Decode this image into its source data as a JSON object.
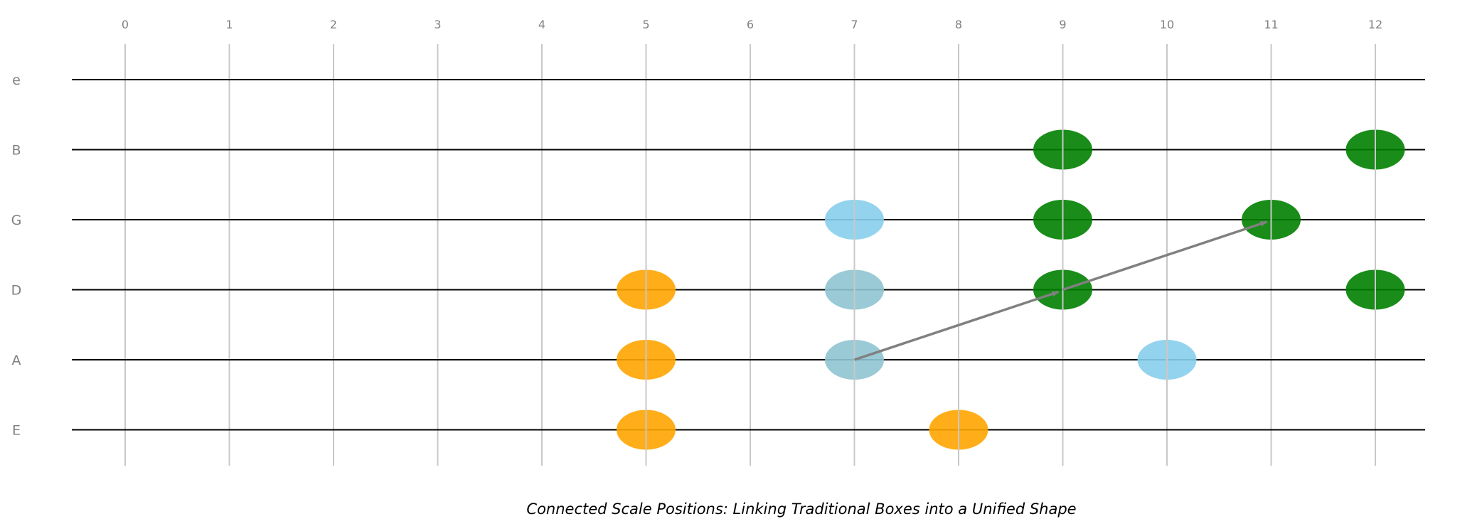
{
  "diagram": {
    "caption": "Connected Scale Positions: Linking Traditional Boxes into a Unified Shape",
    "frets": [
      0,
      1,
      2,
      3,
      4,
      5,
      6,
      7,
      8,
      9,
      10,
      11,
      12
    ],
    "strings": [
      "e",
      "B",
      "G",
      "D",
      "A",
      "E"
    ],
    "colors": {
      "orange": "#FFA500",
      "light_blue": "#87CEEB",
      "grayish_blue": "#8FC4D0",
      "green": "#008000",
      "arrow": "#808080",
      "string_line": "#000000",
      "fret_line": "#C8C8C8"
    },
    "notes": [
      {
        "string": "E",
        "fret": 5,
        "color": "orange"
      },
      {
        "string": "E",
        "fret": 8,
        "color": "orange"
      },
      {
        "string": "A",
        "fret": 5,
        "color": "orange"
      },
      {
        "string": "D",
        "fret": 5,
        "color": "orange"
      },
      {
        "string": "A",
        "fret": 7,
        "color": "grayish_blue"
      },
      {
        "string": "D",
        "fret": 7,
        "color": "grayish_blue"
      },
      {
        "string": "G",
        "fret": 7,
        "color": "light_blue"
      },
      {
        "string": "A",
        "fret": 10,
        "color": "light_blue"
      },
      {
        "string": "D",
        "fret": 9,
        "color": "green"
      },
      {
        "string": "G",
        "fret": 9,
        "color": "green"
      },
      {
        "string": "B",
        "fret": 9,
        "color": "green"
      },
      {
        "string": "G",
        "fret": 11,
        "color": "green"
      },
      {
        "string": "D",
        "fret": 12,
        "color": "green"
      },
      {
        "string": "B",
        "fret": 12,
        "color": "green"
      }
    ],
    "arrows": [
      {
        "from": {
          "string": "A",
          "fret": 7
        },
        "to": {
          "string": "D",
          "fret": 9
        }
      },
      {
        "from": {
          "string": "D",
          "fret": 9
        },
        "to": {
          "string": "G",
          "fret": 11
        }
      }
    ]
  }
}
